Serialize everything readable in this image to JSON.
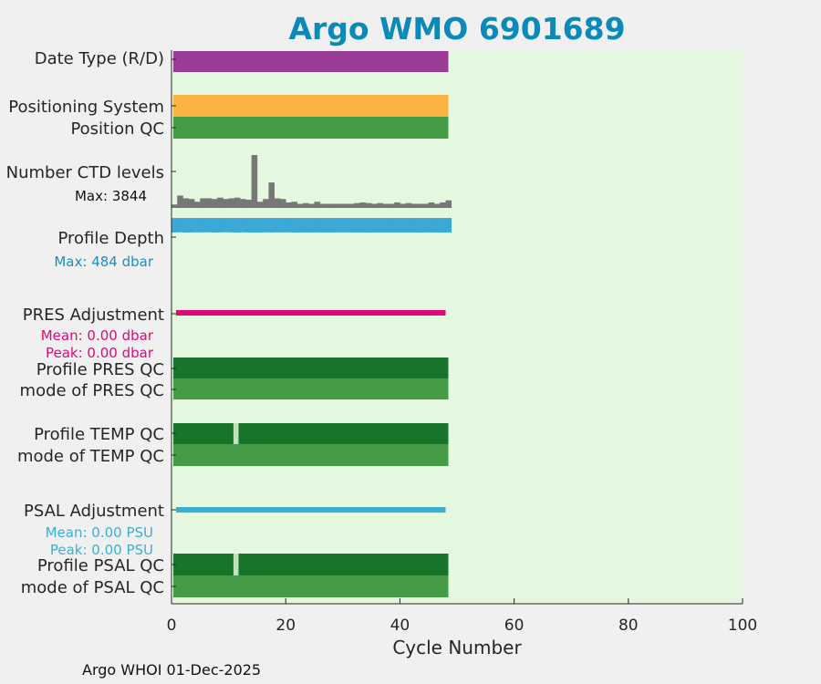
{
  "title": "Argo WMO 6901689",
  "footer": "Argo WHOI 01-Dec-2025",
  "colors": {
    "background": "#e4f8e0",
    "date_type": "#9a3b96",
    "positioning": "#fbb441",
    "qc_good": "#469b46",
    "qc_profile_good": "#17742a",
    "qc_gap": "#bfe3b8",
    "ctd_levels": "#777777",
    "profile_depth": "#3aa9d5",
    "pres_adjust": "#e2087a",
    "psal_adjust": "#3bafd2",
    "max_text": "#1a8fbf"
  },
  "chart_data": {
    "type": "bar",
    "xlabel": "Cycle Number",
    "xlim": [
      0,
      100
    ],
    "xticks": [
      0,
      20,
      40,
      60,
      80,
      100
    ],
    "last_cycle": 48,
    "rows": [
      {
        "id": "date_type",
        "label": "Date Type (R/D)",
        "kind": "band"
      },
      {
        "id": "positioning",
        "label": "Positioning System",
        "kind": "band"
      },
      {
        "id": "position_qc",
        "label": "Position QC",
        "kind": "band"
      },
      {
        "id": "ctd_levels",
        "label": "Number CTD levels",
        "kind": "histogram",
        "annotation": "Max: 3844",
        "max": 3844
      },
      {
        "id": "profile_depth",
        "label": "Profile Depth",
        "kind": "histogram",
        "annotation": "Max:  484 dbar",
        "max": 484
      },
      {
        "id": "pres_adjust",
        "label": "PRES Adjustment",
        "kind": "line",
        "annotations": [
          "Mean: 0.00 dbar",
          "Peak: 0.00 dbar"
        ]
      },
      {
        "id": "profile_pres_qc",
        "label": "Profile PRES QC",
        "kind": "band"
      },
      {
        "id": "mode_pres_qc",
        "label": "mode of PRES QC",
        "kind": "band"
      },
      {
        "id": "profile_temp_qc",
        "label": "Profile TEMP QC",
        "kind": "band",
        "gap_cycle": 11
      },
      {
        "id": "mode_temp_qc",
        "label": "mode of TEMP QC",
        "kind": "band"
      },
      {
        "id": "psal_adjust",
        "label": "PSAL Adjustment",
        "kind": "line",
        "annotations": [
          "Mean: 0.00 PSU",
          "Peak: 0.00 PSU"
        ]
      },
      {
        "id": "profile_psal_qc",
        "label": "Profile PSAL QC",
        "kind": "band",
        "gap_cycle": 11
      },
      {
        "id": "mode_psal_qc",
        "label": "mode of PSAL QC",
        "kind": "band"
      }
    ],
    "ctd_levels_values": [
      250,
      900,
      700,
      650,
      450,
      700,
      700,
      650,
      750,
      650,
      700,
      750,
      650,
      600,
      3844,
      450,
      650,
      1850,
      700,
      650,
      400,
      450,
      300,
      350,
      300,
      450,
      300,
      300,
      300,
      300,
      300,
      300,
      350,
      400,
      350,
      300,
      350,
      300,
      300,
      400,
      300,
      350,
      300,
      300,
      300,
      400,
      300,
      400,
      550
    ],
    "profile_depth_values": [
      470,
      430,
      480,
      470,
      440,
      455,
      430,
      465,
      455,
      430,
      465,
      475,
      445,
      470,
      470,
      484,
      445,
      470,
      450,
      460,
      450,
      470,
      465,
      460,
      470,
      455,
      470,
      460,
      470,
      455,
      460,
      465,
      470,
      460,
      470,
      465,
      470,
      460,
      470,
      465,
      460,
      470,
      465,
      470,
      460,
      465,
      470,
      484,
      460
    ]
  }
}
